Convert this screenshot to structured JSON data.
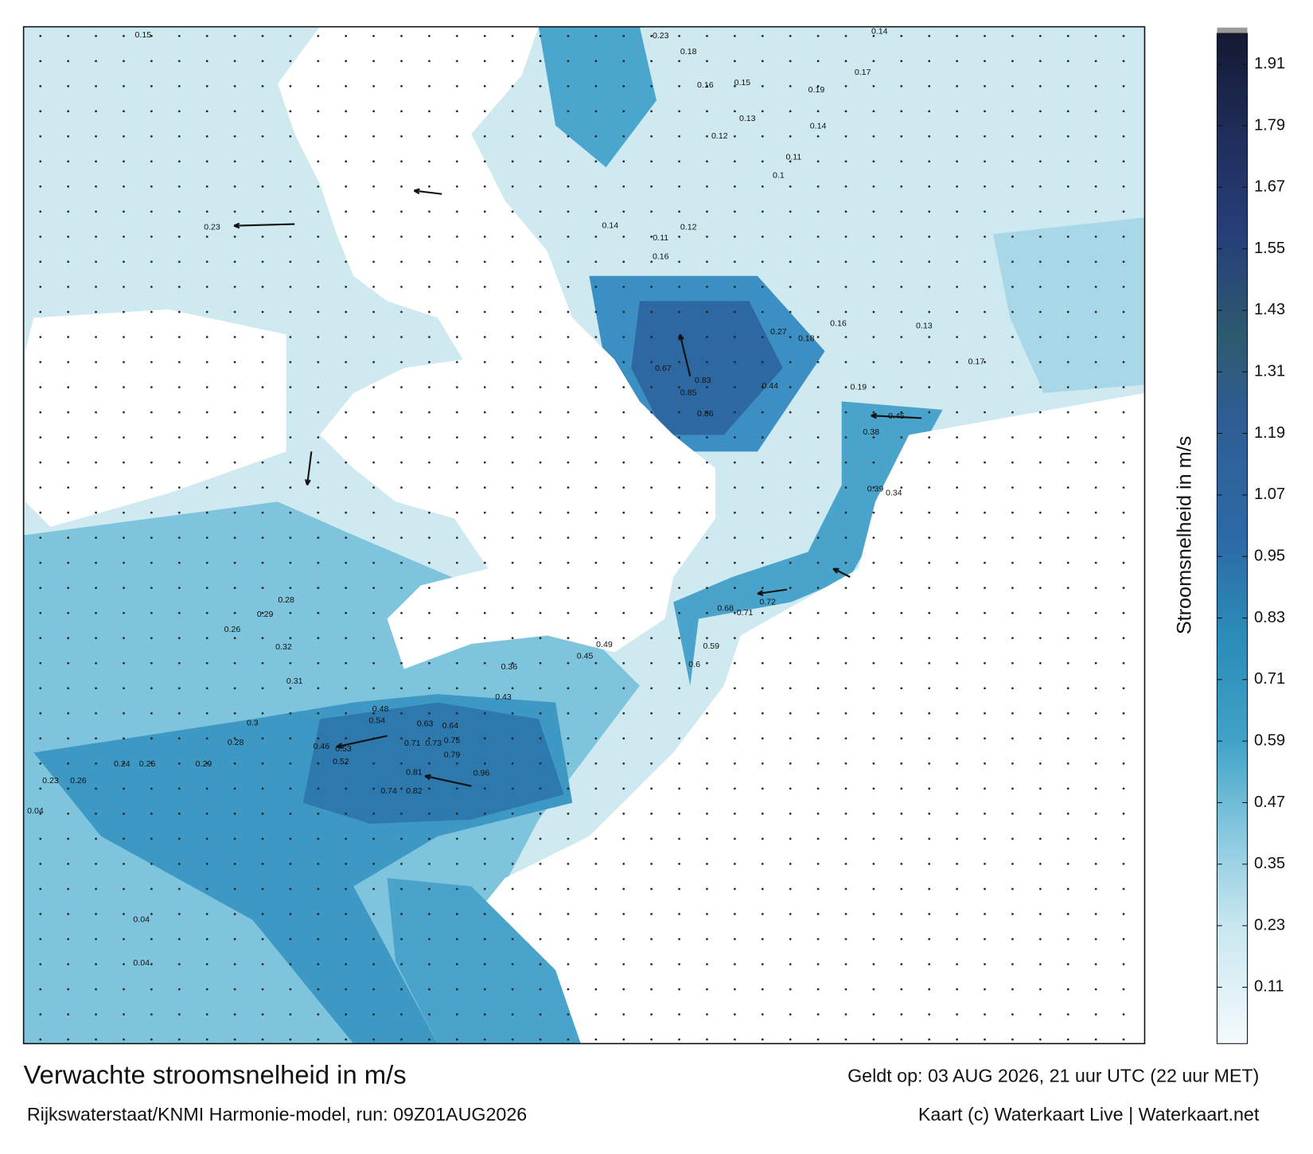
{
  "title": "Verwachte stroomsnelheid in m/s",
  "valid_time": "Geldt op: 03 AUG 2026, 21 uur UTC (22 uur MET)",
  "source": "Rijkswaterstaat/KNMI Harmonie-model, run: 09Z01AUG2026",
  "credit": "Kaart (c) Waterkaart Live | Waterkaart.net",
  "colorbar": {
    "label": "Stroomsnelheid in m/s",
    "range": [
      0,
      1.97
    ],
    "ticks": [
      0.11,
      0.23,
      0.35,
      0.47,
      0.59,
      0.71,
      0.83,
      0.95,
      1.07,
      1.19,
      1.31,
      1.43,
      1.55,
      1.67,
      1.79,
      1.91
    ]
  },
  "speed_labels": [
    0.15,
    0.23,
    0.45,
    0.67,
    0.83,
    0.85,
    0.86,
    0.27,
    0.44,
    0.71,
    0.73,
    0.75,
    0.79,
    0.96,
    0.81,
    0.82,
    0.74,
    0.63,
    0.64,
    0.54,
    0.48,
    0.46,
    0.53,
    0.52,
    0.36,
    0.43,
    0.45,
    0.49,
    0.29,
    0.28,
    0.26,
    0.32,
    0.31,
    0.3,
    0.28,
    0.29,
    0.23,
    0.26,
    0.24,
    0.25,
    0.04,
    0.04,
    0.04,
    0.72,
    0.71,
    0.68,
    0.6,
    0.59,
    0.39,
    0.34,
    0.38,
    0.17,
    0.19,
    0.14,
    0.23,
    0.12,
    0.13,
    0.16,
    0.15,
    0.19,
    0.14,
    0.18,
    0.17,
    0.11,
    0.1,
    0.12,
    0.11,
    0.14,
    0.16,
    0.13,
    0.16,
    0.18
  ]
}
